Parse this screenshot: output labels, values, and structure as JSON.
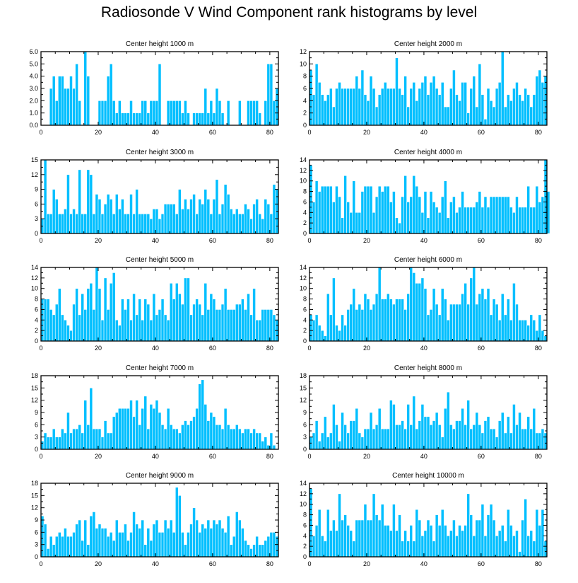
{
  "title": "Radiosonde V Wind Component rank histograms by level",
  "colors": {
    "bar": "#00bfff",
    "bar_edge": "#ffffff",
    "axis": "#000000"
  },
  "chart_data": [
    {
      "type": "bar",
      "title": "Center height 1000 m",
      "xlim": [
        0,
        83
      ],
      "ylim": [
        0,
        6
      ],
      "yticks": [
        0,
        1,
        2,
        3,
        4,
        5,
        6
      ],
      "ytick_labels": [
        "0.0",
        "1.0",
        "2.0",
        "3.0",
        "4.0",
        "5.0",
        "6.0"
      ],
      "xticks": [
        0,
        20,
        40,
        60,
        80
      ],
      "xtick_labels": [
        "0",
        "20",
        "40",
        "60",
        "80"
      ],
      "values": [
        0,
        0,
        0,
        3,
        4,
        2,
        4,
        4,
        3,
        3,
        4,
        3,
        5,
        2,
        0,
        6,
        4,
        0,
        0,
        0,
        2,
        2,
        2,
        4,
        5,
        2,
        1,
        2,
        1,
        1,
        1,
        2,
        1,
        1,
        1,
        2,
        2,
        1,
        2,
        2,
        2,
        5,
        0,
        0,
        2,
        2,
        2,
        2,
        2,
        1,
        2,
        1,
        0,
        1,
        1,
        1,
        1,
        3,
        1,
        2,
        1,
        3,
        2,
        1,
        0,
        2,
        0,
        0,
        0,
        2,
        0,
        0,
        2,
        2,
        2,
        2,
        1,
        0,
        2,
        5,
        5,
        2,
        3
      ]
    },
    {
      "type": "bar",
      "title": "Center height 2000 m",
      "xlim": [
        0,
        83
      ],
      "ylim": [
        0,
        12
      ],
      "yticks": [
        0,
        2,
        4,
        6,
        8,
        10,
        12
      ],
      "ytick_labels": [
        "0",
        "2",
        "4",
        "6",
        "8",
        "10",
        "12"
      ],
      "xticks": [
        0,
        20,
        40,
        60,
        80
      ],
      "xtick_labels": [
        "0",
        "20",
        "40",
        "60",
        "80"
      ],
      "values": [
        9,
        5,
        10,
        7,
        5,
        4,
        5,
        6,
        3,
        6,
        7,
        6,
        6,
        6,
        6,
        6,
        8,
        6,
        9,
        5,
        4,
        8,
        6,
        3,
        5,
        6,
        7,
        6,
        6,
        6,
        11,
        6,
        5,
        8,
        3,
        6,
        7,
        4,
        6,
        7,
        8,
        5,
        7,
        8,
        6,
        5,
        7,
        3,
        3,
        6,
        9,
        5,
        4,
        7,
        7,
        2,
        6,
        8,
        3,
        10,
        5,
        1,
        6,
        4,
        3,
        6,
        7,
        12,
        3,
        5,
        4,
        6,
        7,
        5,
        4,
        6,
        5,
        3,
        5,
        8,
        9,
        7,
        8
      ]
    },
    {
      "type": "bar",
      "title": "Center height 3000 m",
      "xlim": [
        0,
        83
      ],
      "ylim": [
        0,
        15
      ],
      "yticks": [
        0,
        3,
        6,
        9,
        12,
        15
      ],
      "ytick_labels": [
        "0",
        "3",
        "6",
        "9",
        "12",
        "15"
      ],
      "xticks": [
        0,
        20,
        40,
        60,
        80
      ],
      "xtick_labels": [
        "0",
        "20",
        "40",
        "60",
        "80"
      ],
      "values": [
        3,
        15,
        4,
        4,
        9,
        7,
        4,
        4,
        5,
        12,
        4,
        5,
        4,
        13,
        4,
        4,
        13,
        12,
        4,
        8,
        7,
        4,
        6,
        8,
        7,
        4,
        8,
        5,
        7,
        4,
        4,
        8,
        4,
        9,
        4,
        4,
        4,
        4,
        3,
        5,
        5,
        3,
        4,
        6,
        6,
        6,
        6,
        4,
        9,
        5,
        7,
        5,
        7,
        8,
        4,
        7,
        6,
        9,
        7,
        4,
        7,
        11,
        4,
        6,
        10,
        8,
        5,
        4,
        5,
        4,
        4,
        6,
        5,
        3,
        6,
        7,
        4,
        3,
        7,
        6,
        4,
        10,
        9
      ]
    },
    {
      "type": "bar",
      "title": "Center height 4000 m",
      "xlim": [
        0,
        83
      ],
      "ylim": [
        0,
        14
      ],
      "yticks": [
        0,
        2,
        4,
        6,
        8,
        10,
        12,
        14
      ],
      "ytick_labels": [
        "0",
        "2",
        "4",
        "6",
        "8",
        "10",
        "12",
        "14"
      ],
      "xticks": [
        0,
        20,
        40,
        60,
        80
      ],
      "xtick_labels": [
        "0",
        "20",
        "40",
        "60",
        "80"
      ],
      "values": [
        13,
        6,
        10,
        8,
        9,
        9,
        9,
        9,
        6,
        9,
        7,
        3,
        11,
        6,
        4,
        10,
        4,
        4,
        8,
        9,
        9,
        9,
        4,
        7,
        9,
        8,
        9,
        9,
        6,
        8,
        3,
        2,
        7,
        11,
        6,
        7,
        11,
        9,
        7,
        4,
        8,
        3,
        8,
        6,
        5,
        4,
        7,
        10,
        3,
        6,
        7,
        4,
        5,
        8,
        5,
        5,
        5,
        5,
        6,
        8,
        5,
        7,
        5,
        7,
        7,
        7,
        7,
        7,
        7,
        7,
        5,
        4,
        7,
        5,
        5,
        5,
        9,
        5,
        5,
        9,
        6,
        7,
        14,
        8
      ]
    },
    {
      "type": "bar",
      "title": "Center height 5000 m",
      "xlim": [
        0,
        83
      ],
      "ylim": [
        0,
        14
      ],
      "yticks": [
        0,
        2,
        4,
        6,
        8,
        10,
        12,
        14
      ],
      "ytick_labels": [
        "0",
        "2",
        "4",
        "6",
        "8",
        "10",
        "12",
        "14"
      ],
      "xticks": [
        0,
        20,
        40,
        60,
        80
      ],
      "xtick_labels": [
        "0",
        "20",
        "40",
        "60",
        "80"
      ],
      "values": [
        8,
        8,
        8,
        6,
        5,
        7,
        10,
        5,
        4,
        3,
        2,
        7,
        10,
        5,
        9,
        6,
        10,
        11,
        6,
        14,
        10,
        4,
        12,
        6,
        11,
        13,
        4,
        3,
        8,
        6,
        8,
        4,
        9,
        5,
        8,
        4,
        8,
        7,
        4,
        9,
        5,
        6,
        8,
        5,
        4,
        11,
        8,
        11,
        9,
        7,
        12,
        12,
        5,
        7,
        8,
        7,
        5,
        11,
        6,
        9,
        8,
        6,
        6,
        7,
        10,
        6,
        6,
        6,
        7,
        7,
        8,
        6,
        9,
        5,
        10,
        4,
        4,
        6,
        6,
        6,
        6,
        5,
        4
      ]
    },
    {
      "type": "bar",
      "title": "Center height 6000 m",
      "xlim": [
        0,
        83
      ],
      "ylim": [
        0,
        14
      ],
      "yticks": [
        0,
        2,
        4,
        6,
        8,
        10,
        12,
        14
      ],
      "ytick_labels": [
        "0",
        "2",
        "4",
        "6",
        "8",
        "10",
        "12",
        "14"
      ],
      "xticks": [
        0,
        20,
        40,
        60,
        80
      ],
      "xtick_labels": [
        "0",
        "20",
        "40",
        "60",
        "80"
      ],
      "values": [
        5,
        4,
        5,
        3,
        2,
        1,
        9,
        5,
        12,
        3,
        2,
        5,
        3,
        6,
        7,
        10,
        6,
        7,
        6,
        9,
        8,
        6,
        7,
        9,
        14,
        8,
        8,
        9,
        8,
        7,
        8,
        8,
        8,
        6,
        9,
        14,
        13,
        11,
        11,
        12,
        10,
        5,
        6,
        10,
        7,
        5,
        10,
        8,
        4,
        7,
        7,
        7,
        7,
        9,
        11,
        7,
        12,
        14,
        7,
        9,
        10,
        8,
        10,
        5,
        8,
        7,
        4,
        9,
        5,
        8,
        4,
        11,
        7,
        4,
        4,
        4,
        3,
        5,
        4,
        2,
        5,
        2,
        1
      ]
    },
    {
      "type": "bar",
      "title": "Center height 7000 m",
      "xlim": [
        0,
        83
      ],
      "ylim": [
        0,
        18
      ],
      "yticks": [
        0,
        3,
        6,
        9,
        12,
        15,
        18
      ],
      "ytick_labels": [
        "0",
        "3",
        "6",
        "9",
        "12",
        "15",
        "18"
      ],
      "xticks": [
        0,
        20,
        40,
        60,
        80
      ],
      "xtick_labels": [
        "0",
        "20",
        "40",
        "60",
        "80"
      ],
      "values": [
        2,
        4,
        3,
        3,
        5,
        3,
        3,
        5,
        4,
        9,
        4,
        5,
        5,
        6,
        4,
        12,
        6,
        15,
        5,
        5,
        5,
        3,
        7,
        4,
        4,
        8,
        9,
        10,
        10,
        10,
        10,
        12,
        8,
        12,
        6,
        10,
        13,
        5,
        11,
        10,
        12,
        9,
        6,
        5,
        10,
        6,
        5,
        5,
        4,
        6,
        7,
        6,
        7,
        8,
        10,
        16,
        17,
        11,
        7,
        9,
        8,
        6,
        6,
        5,
        10,
        6,
        5,
        5,
        6,
        5,
        4,
        5,
        5,
        4,
        5,
        4,
        4,
        2,
        3,
        1,
        4,
        1
      ]
    },
    {
      "type": "bar",
      "title": "Center height 8000 m",
      "xlim": [
        0,
        83
      ],
      "ylim": [
        0,
        18
      ],
      "yticks": [
        0,
        3,
        6,
        9,
        12,
        15,
        18
      ],
      "ytick_labels": [
        "0",
        "3",
        "6",
        "9",
        "12",
        "15",
        "18"
      ],
      "xticks": [
        0,
        20,
        40,
        60,
        80
      ],
      "xtick_labels": [
        "0",
        "20",
        "40",
        "60",
        "80"
      ],
      "values": [
        3,
        4,
        7,
        2,
        4,
        8,
        3,
        4,
        11,
        6,
        2,
        9,
        6,
        4,
        7,
        7,
        10,
        4,
        3,
        5,
        5,
        9,
        5,
        6,
        10,
        5,
        5,
        5,
        12,
        11,
        6,
        6,
        7,
        5,
        11,
        6,
        13,
        5,
        7,
        11,
        8,
        8,
        6,
        7,
        9,
        6,
        3,
        10,
        14,
        6,
        5,
        7,
        7,
        10,
        6,
        12,
        5,
        6,
        9,
        6,
        4,
        7,
        8,
        5,
        5,
        3,
        7,
        9,
        4,
        8,
        4,
        11,
        6,
        9,
        5,
        5,
        8,
        5,
        10,
        4,
        4,
        5,
        4
      ]
    },
    {
      "type": "bar",
      "title": "Center height 9000 m",
      "xlim": [
        0,
        83
      ],
      "ylim": [
        0,
        18
      ],
      "yticks": [
        0,
        3,
        6,
        9,
        12,
        15,
        18
      ],
      "ytick_labels": [
        "0",
        "3",
        "6",
        "9",
        "12",
        "15",
        "18"
      ],
      "xticks": [
        0,
        20,
        40,
        60,
        80
      ],
      "xtick_labels": [
        "0",
        "20",
        "40",
        "60",
        "80"
      ],
      "values": [
        10,
        8,
        2,
        5,
        3,
        5,
        6,
        5,
        7,
        5,
        5,
        6,
        8,
        9,
        4,
        9,
        3,
        10,
        11,
        7,
        8,
        7,
        7,
        5,
        6,
        4,
        9,
        6,
        6,
        8,
        4,
        6,
        11,
        8,
        7,
        9,
        3,
        7,
        4,
        8,
        9,
        6,
        6,
        9,
        7,
        9,
        6,
        17,
        15,
        6,
        3,
        6,
        8,
        12,
        9,
        6,
        8,
        7,
        9,
        7,
        9,
        8,
        9,
        7,
        6,
        10,
        3,
        5,
        11,
        9,
        7,
        4,
        3,
        2,
        3,
        5,
        3,
        3,
        4,
        5,
        6,
        6,
        5
      ]
    },
    {
      "type": "bar",
      "title": "Center height 10000 m",
      "xlim": [
        0,
        83
      ],
      "ylim": [
        0,
        14
      ],
      "yticks": [
        0,
        2,
        4,
        6,
        8,
        10,
        12,
        14
      ],
      "ytick_labels": [
        "0",
        "2",
        "4",
        "6",
        "8",
        "10",
        "12",
        "14"
      ],
      "xticks": [
        0,
        20,
        40,
        60,
        80
      ],
      "xtick_labels": [
        "0",
        "20",
        "40",
        "60",
        "80"
      ],
      "values": [
        13,
        4,
        6,
        9,
        4,
        3,
        9,
        5,
        7,
        5,
        12,
        7,
        8,
        6,
        5,
        3,
        7,
        7,
        7,
        10,
        7,
        7,
        12,
        8,
        7,
        10,
        6,
        6,
        5,
        10,
        5,
        8,
        3,
        5,
        3,
        6,
        3,
        9,
        7,
        4,
        5,
        7,
        6,
        3,
        8,
        6,
        9,
        6,
        4,
        5,
        7,
        4,
        6,
        5,
        6,
        12,
        8,
        4,
        7,
        7,
        10,
        4,
        8,
        10,
        7,
        4,
        5,
        6,
        3,
        9,
        6,
        4,
        5,
        1,
        7,
        11,
        4,
        5,
        3,
        9,
        6,
        9,
        3
      ]
    }
  ]
}
